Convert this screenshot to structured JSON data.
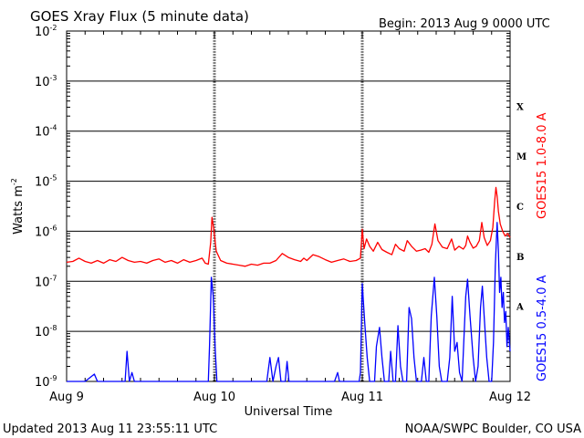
{
  "header": {
    "title": "GOES Xray Flux (5 minute data)",
    "begin": "Begin:  2013 Aug 9 0000 UTC"
  },
  "footer": {
    "updated": "Updated 2013 Aug 11 23:55:11 UTC",
    "credit": "NOAA/SWPC Boulder, CO USA"
  },
  "chart_data": {
    "type": "line",
    "xlabel": "Universal Time",
    "ylabel": "Watts m",
    "ylabel_sup": "-2",
    "yscale": "log",
    "ylim": [
      1e-09,
      0.01
    ],
    "xlim": [
      0,
      72
    ],
    "x_unit": "hours since 2013 Aug 9 0000 UTC",
    "x_ticks": [
      {
        "x": 0,
        "label": "Aug 9"
      },
      {
        "x": 24,
        "label": "Aug 10"
      },
      {
        "x": 48,
        "label": "Aug 11"
      },
      {
        "x": 72,
        "label": "Aug 12"
      }
    ],
    "y_ticks": [
      {
        "exp": -9,
        "label": "10",
        "sup": "-9"
      },
      {
        "exp": -8,
        "label": "10",
        "sup": "-8"
      },
      {
        "exp": -7,
        "label": "10",
        "sup": "-7"
      },
      {
        "exp": -6,
        "label": "10",
        "sup": "-6"
      },
      {
        "exp": -5,
        "label": "10",
        "sup": "-5"
      },
      {
        "exp": -4,
        "label": "10",
        "sup": "-4"
      },
      {
        "exp": -3,
        "label": "10",
        "sup": "-3"
      },
      {
        "exp": -2,
        "label": "10",
        "sup": "-2"
      }
    ],
    "flare_classes": [
      {
        "label": "A",
        "exp": -8
      },
      {
        "label": "B",
        "exp": -7
      },
      {
        "label": "C",
        "exp": -6
      },
      {
        "label": "M",
        "exp": -5
      },
      {
        "label": "X",
        "exp": -4
      }
    ],
    "grid": true,
    "series": [
      {
        "name": "GOES15 1.0-8.0 A",
        "color": "#ff0000",
        "points": [
          [
            0,
            2.4e-07
          ],
          [
            1,
            2.5e-07
          ],
          [
            2,
            2.9e-07
          ],
          [
            3,
            2.5e-07
          ],
          [
            4,
            2.3e-07
          ],
          [
            5,
            2.6e-07
          ],
          [
            6,
            2.3e-07
          ],
          [
            7,
            2.7e-07
          ],
          [
            8,
            2.5e-07
          ],
          [
            9,
            3e-07
          ],
          [
            10,
            2.6e-07
          ],
          [
            11,
            2.4e-07
          ],
          [
            12,
            2.5e-07
          ],
          [
            13,
            2.3e-07
          ],
          [
            14,
            2.6e-07
          ],
          [
            15,
            2.8e-07
          ],
          [
            16,
            2.4e-07
          ],
          [
            17,
            2.6e-07
          ],
          [
            18,
            2.3e-07
          ],
          [
            19,
            2.7e-07
          ],
          [
            20,
            2.4e-07
          ],
          [
            21,
            2.6e-07
          ],
          [
            22,
            2.9e-07
          ],
          [
            22.5,
            2.3e-07
          ],
          [
            23.0,
            2.2e-07
          ],
          [
            23.4,
            6e-07
          ],
          [
            23.6,
            1.9e-06
          ],
          [
            23.9,
            1.1e-06
          ],
          [
            24.3,
            4e-07
          ],
          [
            25,
            2.6e-07
          ],
          [
            26,
            2.3e-07
          ],
          [
            27,
            2.2e-07
          ],
          [
            28,
            2.1e-07
          ],
          [
            29,
            2e-07
          ],
          [
            30,
            2.2e-07
          ],
          [
            31,
            2.1e-07
          ],
          [
            32,
            2.3e-07
          ],
          [
            33,
            2.3e-07
          ],
          [
            34,
            2.6e-07
          ],
          [
            35,
            3.6e-07
          ],
          [
            36,
            3e-07
          ],
          [
            37,
            2.7e-07
          ],
          [
            38,
            2.5e-07
          ],
          [
            38.5,
            2.9e-07
          ],
          [
            39,
            2.6e-07
          ],
          [
            40,
            3.4e-07
          ],
          [
            41,
            3.1e-07
          ],
          [
            42,
            2.7e-07
          ],
          [
            43,
            2.4e-07
          ],
          [
            44,
            2.6e-07
          ],
          [
            45,
            2.8e-07
          ],
          [
            46,
            2.5e-07
          ],
          [
            47,
            2.6e-07
          ],
          [
            47.7,
            2.9e-07
          ],
          [
            48.0,
            1.1e-06
          ],
          [
            48.3,
            4.5e-07
          ],
          [
            48.7,
            7e-07
          ],
          [
            49.2,
            5e-07
          ],
          [
            49.8,
            4e-07
          ],
          [
            50.5,
            6e-07
          ],
          [
            51.2,
            4.3e-07
          ],
          [
            52.0,
            3.8e-07
          ],
          [
            52.8,
            3.4e-07
          ],
          [
            53.4,
            5.5e-07
          ],
          [
            54.0,
            4.5e-07
          ],
          [
            54.8,
            4e-07
          ],
          [
            55.3,
            6.5e-07
          ],
          [
            56.0,
            5e-07
          ],
          [
            56.8,
            4e-07
          ],
          [
            57.5,
            4.2e-07
          ],
          [
            58.2,
            4.5e-07
          ],
          [
            58.8,
            3.8e-07
          ],
          [
            59.3,
            5.5e-07
          ],
          [
            59.8,
            1.4e-06
          ],
          [
            60.3,
            6.5e-07
          ],
          [
            61.0,
            4.8e-07
          ],
          [
            61.8,
            4.5e-07
          ],
          [
            62.5,
            7e-07
          ],
          [
            63.0,
            4.2e-07
          ],
          [
            63.7,
            5e-07
          ],
          [
            64.4,
            4.4e-07
          ],
          [
            64.8,
            5.2e-07
          ],
          [
            65.1,
            8e-07
          ],
          [
            65.5,
            6e-07
          ],
          [
            66.0,
            4.6e-07
          ],
          [
            66.5,
            5e-07
          ],
          [
            67.0,
            6.5e-07
          ],
          [
            67.4,
            1.5e-06
          ],
          [
            67.8,
            7.5e-07
          ],
          [
            68.3,
            5.2e-07
          ],
          [
            68.8,
            6.5e-07
          ],
          [
            69.2,
            1.2e-06
          ],
          [
            69.5,
            4e-06
          ],
          [
            69.7,
            7.5e-06
          ],
          [
            69.9,
            5e-06
          ],
          [
            70.1,
            2.5e-06
          ],
          [
            70.4,
            1.4e-06
          ],
          [
            70.8,
            1e-06
          ],
          [
            71.2,
            8e-07
          ],
          [
            71.6,
            9e-07
          ],
          [
            72,
            7.5e-07
          ]
        ]
      },
      {
        "name": "GOES15 0.5-4.0 A",
        "color": "#0000ff",
        "points": [
          [
            0,
            1e-09
          ],
          [
            3,
            1e-09
          ],
          [
            4.5,
            1.4e-09
          ],
          [
            5,
            1e-09
          ],
          [
            9.5,
            1e-09
          ],
          [
            9.8,
            4e-09
          ],
          [
            10.2,
            1e-09
          ],
          [
            10.6,
            1.5e-09
          ],
          [
            11,
            1e-09
          ],
          [
            23.0,
            1e-09
          ],
          [
            23.2,
            5e-09
          ],
          [
            23.5,
            1.2e-07
          ],
          [
            23.8,
            5e-08
          ],
          [
            24.1,
            5e-09
          ],
          [
            24.4,
            1e-09
          ],
          [
            32.5,
            1e-09
          ],
          [
            33.0,
            3e-09
          ],
          [
            33.5,
            1e-09
          ],
          [
            34.0,
            2e-09
          ],
          [
            34.4,
            3e-09
          ],
          [
            34.8,
            1e-09
          ],
          [
            35.5,
            1e-09
          ],
          [
            35.8,
            2.5e-09
          ],
          [
            36.1,
            1e-09
          ],
          [
            43.5,
            1e-09
          ],
          [
            44.0,
            1.5e-09
          ],
          [
            44.3,
            1e-09
          ],
          [
            47.5,
            1e-09
          ],
          [
            47.7,
            1.5e-09
          ],
          [
            48.0,
            9e-08
          ],
          [
            48.4,
            1.5e-08
          ],
          [
            48.8,
            3e-09
          ],
          [
            49.2,
            1e-09
          ],
          [
            50.0,
            1e-09
          ],
          [
            50.3,
            5e-09
          ],
          [
            50.8,
            1.2e-08
          ],
          [
            51.2,
            3e-09
          ],
          [
            51.6,
            1e-09
          ],
          [
            52.3,
            1e-09
          ],
          [
            52.6,
            4e-09
          ],
          [
            53.0,
            1e-09
          ],
          [
            53.4,
            1e-09
          ],
          [
            53.8,
            1.3e-08
          ],
          [
            54.2,
            2e-09
          ],
          [
            54.6,
            1e-09
          ],
          [
            55.2,
            1e-09
          ],
          [
            55.6,
            3e-08
          ],
          [
            56.0,
            1.8e-08
          ],
          [
            56.4,
            3e-09
          ],
          [
            56.8,
            1e-09
          ],
          [
            57.6,
            1e-09
          ],
          [
            58.0,
            3e-09
          ],
          [
            58.4,
            1e-09
          ],
          [
            58.8,
            1e-09
          ],
          [
            59.2,
            2e-08
          ],
          [
            59.7,
            1.2e-07
          ],
          [
            60.1,
            2e-08
          ],
          [
            60.5,
            2e-09
          ],
          [
            60.9,
            1e-09
          ],
          [
            61.8,
            1e-09
          ],
          [
            62.2,
            3e-09
          ],
          [
            62.6,
            5e-08
          ],
          [
            63.0,
            4e-09
          ],
          [
            63.4,
            6e-09
          ],
          [
            63.8,
            1.5e-09
          ],
          [
            64.2,
            1e-09
          ],
          [
            64.8,
            5e-08
          ],
          [
            65.1,
            1.1e-07
          ],
          [
            65.5,
            2e-08
          ],
          [
            66.0,
            3e-09
          ],
          [
            66.4,
            1e-09
          ],
          [
            66.8,
            2e-09
          ],
          [
            67.2,
            3e-08
          ],
          [
            67.5,
            8e-08
          ],
          [
            67.8,
            2e-08
          ],
          [
            68.2,
            3e-09
          ],
          [
            68.6,
            1e-09
          ],
          [
            69.0,
            1e-09
          ],
          [
            69.3,
            6e-09
          ],
          [
            69.6,
            2e-07
          ],
          [
            69.9,
            1.5e-06
          ],
          [
            70.1,
            4e-07
          ],
          [
            70.3,
            6e-08
          ],
          [
            70.5,
            1.2e-07
          ],
          [
            70.7,
            3e-08
          ],
          [
            70.9,
            6e-08
          ],
          [
            71.1,
            1.5e-08
          ],
          [
            71.3,
            2.5e-08
          ],
          [
            71.5,
            5e-09
          ],
          [
            71.7,
            1.2e-08
          ],
          [
            72,
            4e-09
          ]
        ]
      }
    ]
  }
}
